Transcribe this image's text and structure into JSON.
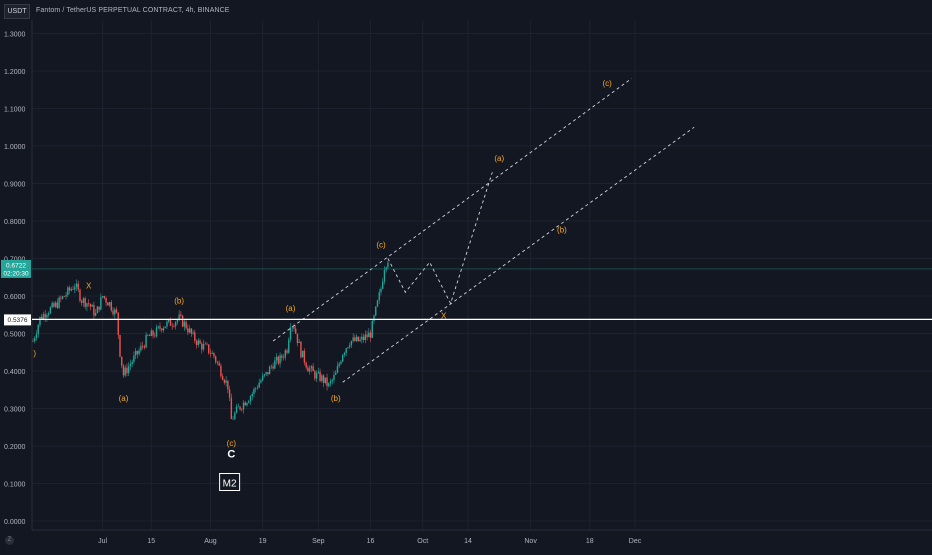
{
  "header": {
    "unit_badge": "USDT",
    "title": "Fantom / TetherUS PERPETUAL CONTRACT, 4h, BINANCE"
  },
  "footer": {
    "logo_text": "Z"
  },
  "chart_data": {
    "type": "candlestick",
    "title": "Fantom / TetherUS PERPETUAL CONTRACT, 4h, BINANCE",
    "ylabel": "USDT",
    "ylim": [
      -0.03,
      1.34
    ],
    "xlim_days": [
      0,
      130
    ],
    "grid": true,
    "colors": {
      "up": "#26a69a",
      "down": "#ef5350",
      "background": "#131722",
      "grid": "#1e2230",
      "wave": "#f7a826",
      "channel": "#d1d4dc"
    },
    "y_ticks": [
      "0.0000",
      "0.1000",
      "0.2000",
      "0.3000",
      "0.4000",
      "0.5000",
      "0.6000",
      "0.7000",
      "0.8000",
      "0.9000",
      "1.0000",
      "1.1000",
      "1.2000",
      "1.3000"
    ],
    "x_ticks": [
      {
        "label": "Jul",
        "day": 20
      },
      {
        "label": "15",
        "day": 34
      },
      {
        "label": "Aug",
        "day": 51
      },
      {
        "label": "19",
        "day": 66
      },
      {
        "label": "Sep",
        "day": 82
      },
      {
        "label": "16",
        "day": 97
      },
      {
        "label": "Oct",
        "day": 112
      },
      {
        "label": "14",
        "day": 125
      },
      {
        "label": "Nov",
        "day": 143
      },
      {
        "label": "18",
        "day": 160
      },
      {
        "label": "Dec",
        "day": 173
      }
    ],
    "price_path": [
      [
        0,
        0.48
      ],
      [
        2,
        0.54
      ],
      [
        4,
        0.56
      ],
      [
        6,
        0.57
      ],
      [
        9,
        0.6
      ],
      [
        12,
        0.63
      ],
      [
        14,
        0.59
      ],
      [
        16,
        0.58
      ],
      [
        18,
        0.55
      ],
      [
        20,
        0.6
      ],
      [
        22,
        0.58
      ],
      [
        24,
        0.55
      ],
      [
        25,
        0.45
      ],
      [
        26,
        0.39
      ],
      [
        28,
        0.42
      ],
      [
        31,
        0.46
      ],
      [
        33,
        0.49
      ],
      [
        35,
        0.5
      ],
      [
        37,
        0.52
      ],
      [
        40,
        0.53
      ],
      [
        42,
        0.54
      ],
      [
        44,
        0.52
      ],
      [
        46,
        0.49
      ],
      [
        48,
        0.47
      ],
      [
        50,
        0.46
      ],
      [
        52,
        0.44
      ],
      [
        54,
        0.4
      ],
      [
        56,
        0.36
      ],
      [
        57,
        0.27
      ],
      [
        59,
        0.3
      ],
      [
        61,
        0.32
      ],
      [
        63,
        0.34
      ],
      [
        65,
        0.37
      ],
      [
        67,
        0.39
      ],
      [
        69,
        0.42
      ],
      [
        71,
        0.43
      ],
      [
        73,
        0.46
      ],
      [
        74,
        0.53
      ],
      [
        75,
        0.52
      ],
      [
        77,
        0.45
      ],
      [
        79,
        0.41
      ],
      [
        81,
        0.39
      ],
      [
        83,
        0.38
      ],
      [
        85,
        0.36
      ],
      [
        87,
        0.39
      ],
      [
        89,
        0.45
      ],
      [
        91,
        0.48
      ],
      [
        94,
        0.48
      ],
      [
        97,
        0.5
      ],
      [
        99,
        0.58
      ],
      [
        100,
        0.62
      ],
      [
        101,
        0.68
      ],
      [
        102,
        0.7
      ]
    ],
    "projection": [
      [
        102,
        0.7
      ],
      [
        107,
        0.61
      ],
      [
        114,
        0.69
      ],
      [
        120,
        0.58
      ],
      [
        132,
        0.93
      ]
    ],
    "channel_upper": {
      "from": [
        69,
        0.48
      ],
      "to": [
        172,
        1.18
      ]
    },
    "channel_lower": {
      "from": [
        89,
        0.37
      ],
      "to": [
        190,
        1.05
      ]
    },
    "horizontal_level": 0.5376,
    "last_price": {
      "value": "0.6722",
      "countdown": "02:20:30",
      "price": 0.6722
    },
    "level_label": "0.5376",
    "wave_labels": [
      {
        "text": ")",
        "day": 0.5,
        "price": 0.44,
        "role": "minor"
      },
      {
        "text": "X",
        "day": 16,
        "price": 0.62,
        "role": "minor"
      },
      {
        "text": "(b)",
        "day": 42,
        "price": 0.58,
        "role": "minor"
      },
      {
        "text": "(a)",
        "day": 26,
        "price": 0.32,
        "role": "minor"
      },
      {
        "text": "(c)",
        "day": 57,
        "price": 0.2,
        "role": "minor"
      },
      {
        "text": "(a)",
        "day": 74,
        "price": 0.56,
        "role": "minor"
      },
      {
        "text": "(b)",
        "day": 87,
        "price": 0.32,
        "role": "minor"
      },
      {
        "text": "(c)",
        "day": 100,
        "price": 0.73,
        "role": "minor"
      },
      {
        "text": "X",
        "day": 118,
        "price": 0.54,
        "role": "minor"
      },
      {
        "text": "(a)",
        "day": 134,
        "price": 0.96,
        "role": "minor"
      },
      {
        "text": "(b)",
        "day": 152,
        "price": 0.77,
        "role": "minor"
      },
      {
        "text": "(c)",
        "day": 165,
        "price": 1.16,
        "role": "minor"
      },
      {
        "text": "C",
        "day": 57,
        "price": 0.17,
        "role": "major"
      }
    ],
    "degree_box": {
      "text": "M2",
      "day": 56.5,
      "price": 0.1
    }
  }
}
